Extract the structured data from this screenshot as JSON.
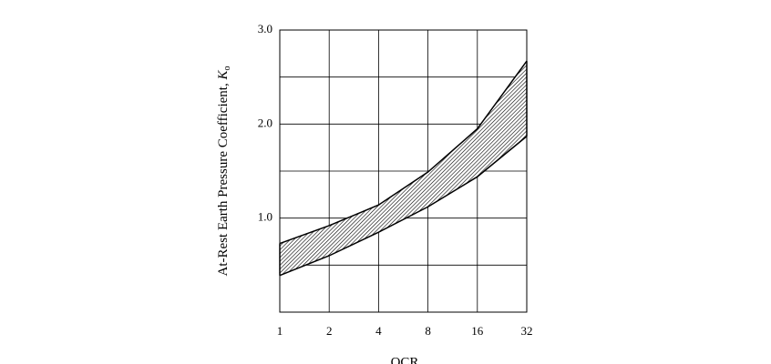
{
  "chart_data": {
    "type": "band",
    "xlabel": "OCR",
    "ylabel": "At-Rest Earth Pressure Coefficient, ",
    "ylabel_symbol": "K",
    "ylabel_subscript": "o",
    "x": [
      1,
      2,
      4,
      8,
      16,
      32
    ],
    "series": [
      {
        "values": [
          0.73,
          0.92,
          1.14,
          1.49,
          1.95,
          2.67
        ],
        "color": "#000000"
      },
      {
        "values": [
          0.39,
          0.6,
          0.85,
          1.12,
          1.44,
          1.87
        ],
        "color": "#000000"
      }
    ],
    "xlog": 2,
    "xlim": [
      1,
      32
    ],
    "xticks": [
      1,
      2,
      4,
      8,
      16,
      32
    ],
    "ylim": [
      0,
      3
    ],
    "yticks": [
      {
        "value": 1,
        "label": "1.0"
      },
      {
        "value": 2,
        "label": "2.0"
      },
      {
        "value": 3,
        "label": "3.0"
      }
    ],
    "ygrid_minor": [
      0.5,
      1.5,
      2.5
    ],
    "grid": true
  }
}
